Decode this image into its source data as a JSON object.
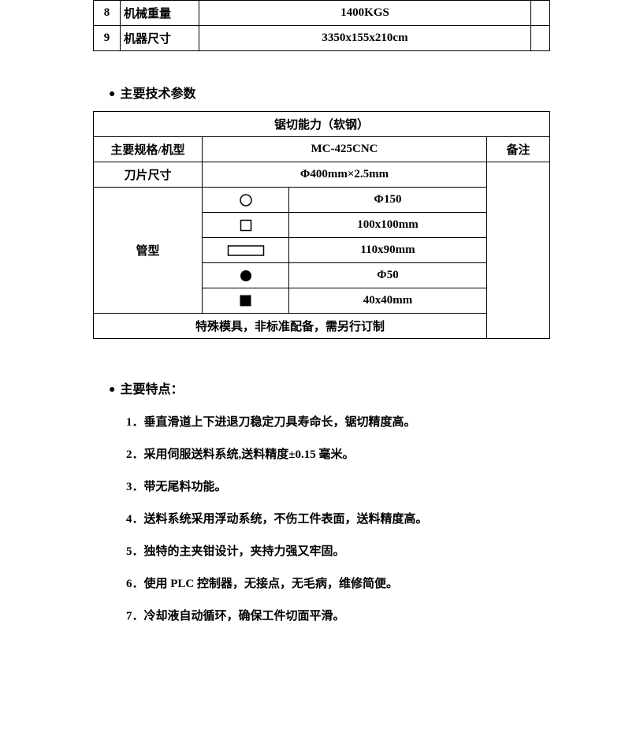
{
  "top_table": {
    "rows": [
      {
        "num": "8",
        "label": "机械重量",
        "value": "1400KGS"
      },
      {
        "num": "9",
        "label": "机器尺寸",
        "value": "3350x155x210cm"
      }
    ]
  },
  "section1": {
    "heading": "主要技术参数",
    "table": {
      "title": "锯切能力（软钢）",
      "header_cols": {
        "spec": "主要规格/机型",
        "model": "MC-425CNC",
        "note": "备注"
      },
      "blade_row": {
        "label": "刀片尺寸",
        "value": "Φ400mm×2.5mm"
      },
      "tube_label": "管型",
      "tube_rows": [
        {
          "symbol": "circle-outline",
          "value": "Φ150"
        },
        {
          "symbol": "square-outline",
          "value": "100x100mm"
        },
        {
          "symbol": "rect-outline",
          "value": "110x90mm"
        },
        {
          "symbol": "circle-solid",
          "value": "Φ50"
        },
        {
          "symbol": "square-solid",
          "value": "40x40mm"
        }
      ],
      "footer": "特殊模具，非标准配备，需另行订制"
    }
  },
  "section2": {
    "heading": "主要特点：",
    "items": [
      "1．垂直滑道上下进退刀稳定刀具寿命长，锯切精度高。",
      "2．采用伺服送料系统,送料精度±0.15 毫米。",
      "3．带无尾料功能。",
      "4．送料系统采用浮动系统，不伤工件表面，送料精度高。",
      "5．独特的主夹钳设计，夹持力强又牢固。",
      "6．使用 PLC 控制器，无接点，无毛病，维修简便。",
      "7．冷却液自动循环，确保工件切面平滑。"
    ]
  },
  "symbols": {
    "circle-outline": "<svg class=\"sym\" width=\"18\" height=\"18\"><circle cx=\"9\" cy=\"9\" r=\"7\" fill=\"none\" stroke=\"#000\" stroke-width=\"1.5\"/></svg>",
    "square-outline": "<svg class=\"sym\" width=\"16\" height=\"16\"><rect x=\"1.5\" y=\"1.5\" width=\"13\" height=\"13\" fill=\"none\" stroke=\"#000\" stroke-width=\"1.5\"/></svg>",
    "rect-outline": "<svg class=\"sym\" width=\"48\" height=\"18\"><rect x=\"1.5\" y=\"3\" width=\"45\" height=\"12\" fill=\"none\" stroke=\"#000\" stroke-width=\"1.5\"/></svg>",
    "circle-solid": "<svg class=\"sym\" width=\"16\" height=\"16\"><circle cx=\"8\" cy=\"8\" r=\"7\" fill=\"#000\"/></svg>",
    "square-solid": "<svg class=\"sym\" width=\"15\" height=\"15\"><rect x=\"0.5\" y=\"0.5\" width=\"14\" height=\"14\" fill=\"#000\"/></svg>"
  }
}
